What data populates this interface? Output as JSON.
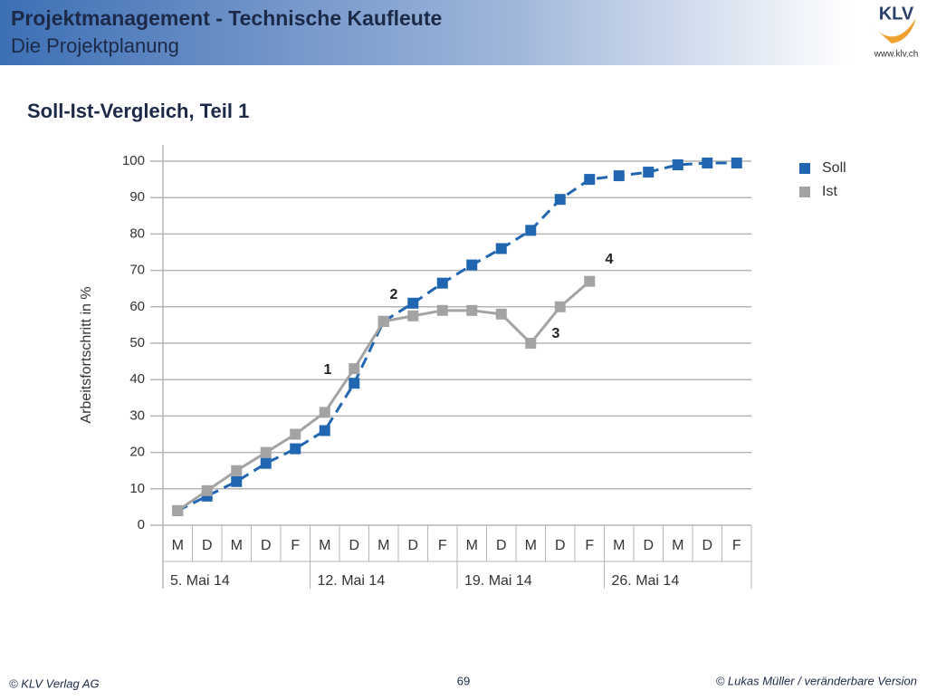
{
  "header": {
    "title": "Projektmanagement - Technische Kaufleute",
    "subtitle": "Die Projektplanung",
    "logo": "KLV",
    "url": "www.klv.ch"
  },
  "heading": "Soll-Ist-Vergleich, Teil 1",
  "footer": {
    "left": "© KLV Verlag AG",
    "page": "69",
    "right": "© Lukas Müller / veränderbare Version"
  },
  "chart_data": {
    "type": "line",
    "ylabel": "Arbeitsfortschritt in %",
    "categories": [
      "M",
      "D",
      "M",
      "D",
      "F",
      "M",
      "D",
      "M",
      "D",
      "F",
      "M",
      "D",
      "M",
      "D",
      "F",
      "M",
      "D",
      "M",
      "D",
      "F"
    ],
    "groups": [
      "5. Mai 14",
      "12. Mai 14",
      "19. Mai 14",
      "26. Mai 14"
    ],
    "series": [
      {
        "name": "Soll",
        "color": "#2166b0",
        "dashed": true,
        "values": [
          4,
          8,
          12,
          17,
          21,
          26,
          39,
          56,
          61,
          66.5,
          71.5,
          76,
          81,
          89.5,
          95,
          96,
          97,
          99,
          99.5,
          99.5
        ]
      },
      {
        "name": "Ist",
        "color": "#a3a3a3",
        "dashed": false,
        "values": [
          4,
          9.5,
          15,
          20,
          25,
          31,
          43,
          56,
          57.5,
          59,
          59,
          58,
          50,
          60,
          67,
          null,
          null,
          null,
          null,
          null
        ]
      }
    ],
    "annotations": [
      "1",
      "2",
      "3",
      "4"
    ],
    "ylim": [
      0,
      100
    ],
    "yticks": [
      0,
      10,
      20,
      30,
      40,
      50,
      60,
      70,
      80,
      90,
      100
    ],
    "grid": true,
    "legend": "right"
  }
}
